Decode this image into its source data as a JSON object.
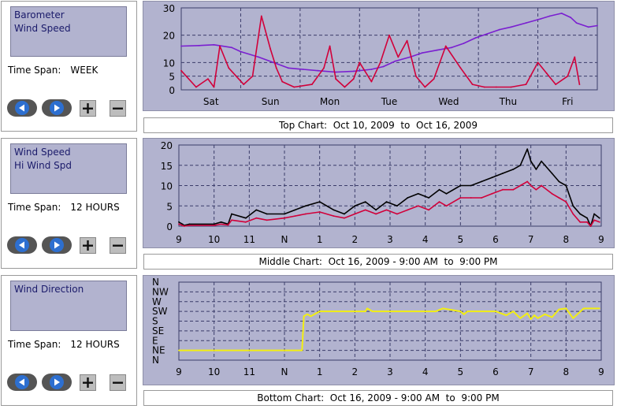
{
  "panels": [
    {
      "legend": [
        "Barometer",
        "Wind Speed"
      ],
      "time_span_label": "Time Span:",
      "time_span_value": "WEEK",
      "caption": "Top Chart:  Oct 10, 2009  to  Oct 16, 2009"
    },
    {
      "legend": [
        "Wind Speed",
        "Hi Wind Spd"
      ],
      "time_span_label": "Time Span:",
      "time_span_value": "12 HOURS",
      "caption": "Middle Chart:  Oct 16, 2009 - 9:00 AM  to  9:00 PM"
    },
    {
      "legend": [
        "Wind Direction"
      ],
      "time_span_label": "Time Span:",
      "time_span_value": "12 HOURS",
      "caption": "Bottom Chart:  Oct 16, 2009 - 9:00 AM  to  9:00 PM"
    }
  ],
  "colors": {
    "plot_bg": "#b2b3cf",
    "grid": "#3b3c6a",
    "barometer": "#7a1fd0",
    "wind_speed": "#d1003a",
    "hi_wind": "#000000",
    "wind_direction": "#f2ee12",
    "button": "#2d6fd0"
  },
  "chart_data": [
    {
      "type": "line",
      "ylim": [
        0,
        30
      ],
      "yticks": [
        "0",
        "5",
        "10",
        "20",
        "30"
      ],
      "x_labels": [
        "Sat",
        "Sun",
        "Mon",
        "Tue",
        "Wed",
        "Thu",
        "Fri"
      ],
      "series": [
        {
          "key": "barometer",
          "x": [
            0,
            0.3,
            0.55,
            0.85,
            1.0,
            1.3,
            1.55,
            1.8,
            2.05,
            2.3,
            2.6,
            2.9,
            3.2,
            3.4,
            3.6,
            3.85,
            4.05,
            4.3,
            4.55,
            4.75,
            4.95,
            5.15,
            5.35,
            5.55,
            5.8,
            6.05,
            6.2,
            6.4,
            6.55,
            6.65,
            6.85,
            7.0
          ],
          "values": [
            16,
            16.2,
            16.5,
            15.5,
            14,
            12,
            10,
            8,
            7.5,
            7,
            6.5,
            6.8,
            7.5,
            8.5,
            10.5,
            12,
            13.5,
            14.5,
            15.5,
            17,
            19,
            20.5,
            22,
            23,
            24.5,
            26,
            27,
            28,
            26.5,
            24.5,
            23,
            23.5
          ]
        },
        {
          "key": "wind_speed",
          "x": [
            0,
            0.25,
            0.45,
            0.55,
            0.65,
            0.8,
            1.05,
            1.2,
            1.35,
            1.5,
            1.6,
            1.7,
            1.9,
            2.2,
            2.4,
            2.5,
            2.6,
            2.75,
            2.9,
            3.0,
            3.2,
            3.35,
            3.5,
            3.65,
            3.8,
            3.95,
            4.1,
            4.25,
            4.45,
            4.7,
            4.9,
            5.1,
            5.3,
            5.55,
            5.8,
            6.0,
            6.15,
            6.3,
            6.5,
            6.62,
            6.7
          ],
          "values": [
            7,
            1,
            4,
            1,
            16,
            8,
            2,
            5,
            27,
            15,
            8,
            3,
            1,
            2,
            8,
            16,
            4,
            1,
            4,
            10,
            3,
            10,
            20,
            12,
            18,
            5,
            1,
            4,
            16,
            8,
            2,
            1,
            1,
            1,
            2,
            10,
            6,
            2,
            5,
            12,
            2
          ]
        }
      ]
    },
    {
      "type": "line",
      "ylim": [
        0,
        20
      ],
      "yticks": [
        "0",
        "5",
        "10",
        "15",
        "20"
      ],
      "x_labels": [
        "9",
        "10",
        "11",
        "N",
        "1",
        "2",
        "3",
        "4",
        "5",
        "6",
        "7",
        "8",
        "9"
      ],
      "series": [
        {
          "key": "hi_wind",
          "x": [
            0,
            0.1,
            0.15,
            0.3,
            1.0,
            1.2,
            1.4,
            1.5,
            1.9,
            2.2,
            2.5,
            3.0,
            3.3,
            3.6,
            4.0,
            4.4,
            4.7,
            5.0,
            5.3,
            5.6,
            5.9,
            6.2,
            6.5,
            6.8,
            7.1,
            7.4,
            7.6,
            8.0,
            8.3,
            8.6,
            8.9,
            9.2,
            9.5,
            9.7,
            9.9,
            10.0,
            10.15,
            10.3,
            10.6,
            10.8,
            11.0,
            11.2,
            11.4,
            11.6,
            11.7,
            11.8,
            11.95
          ],
          "values": [
            1,
            0.5,
            0.2,
            0.5,
            0.5,
            1,
            0.5,
            3,
            2,
            4,
            3,
            3,
            4,
            5,
            6,
            4,
            3,
            5,
            6,
            4,
            6,
            5,
            7,
            8,
            7,
            9,
            8,
            10,
            10,
            11,
            12,
            13,
            14,
            15,
            19,
            16,
            14,
            16,
            13,
            11,
            10,
            5,
            3,
            2,
            0,
            3,
            2
          ]
        },
        {
          "key": "wind_speed",
          "x": [
            0,
            0.1,
            0.15,
            0.3,
            1.0,
            1.2,
            1.4,
            1.5,
            1.9,
            2.2,
            2.5,
            3.0,
            3.3,
            3.6,
            4.0,
            4.4,
            4.7,
            5.0,
            5.3,
            5.6,
            5.9,
            6.2,
            6.5,
            6.8,
            7.1,
            7.4,
            7.6,
            8.0,
            8.3,
            8.6,
            8.9,
            9.2,
            9.5,
            9.7,
            9.9,
            10.0,
            10.15,
            10.3,
            10.6,
            10.8,
            11.0,
            11.2,
            11.4,
            11.6,
            11.7,
            11.8,
            11.95
          ],
          "values": [
            0.5,
            0.2,
            0,
            0.2,
            0.2,
            0.5,
            0.3,
            1.5,
            1,
            2,
            1.5,
            2,
            2.5,
            3,
            3.5,
            2.5,
            2,
            3,
            4,
            3,
            4,
            3,
            4,
            5,
            4,
            6,
            5,
            7,
            7,
            7,
            8,
            9,
            9,
            10,
            11,
            10,
            9,
            10,
            8,
            7,
            6,
            3,
            1,
            1,
            0,
            1.5,
            1
          ]
        }
      ]
    },
    {
      "type": "line",
      "y_categories": [
        "N",
        "NE",
        "E",
        "SE",
        "S",
        "SW",
        "W",
        "NW",
        "N"
      ],
      "x_labels": [
        "9",
        "10",
        "11",
        "N",
        "1",
        "2",
        "3",
        "4",
        "5",
        "6",
        "7",
        "8",
        "9"
      ],
      "series": [
        {
          "key": "wind_direction",
          "x": [
            0,
            0.15,
            0.5,
            0.7,
            1.3,
            3.0,
            3.3,
            3.5,
            3.55,
            3.65,
            3.75,
            3.85,
            4.0,
            4.5,
            5.3,
            5.35,
            5.5,
            6.2,
            7.3,
            7.5,
            8.0,
            8.1,
            8.2,
            8.5,
            9.0,
            9.3,
            9.5,
            9.7,
            9.9,
            10.0,
            10.1,
            10.2,
            10.4,
            10.6,
            10.8,
            11.0,
            11.2,
            11.5,
            11.95
          ],
          "values": [
            1,
            1,
            1,
            1,
            1,
            1,
            1,
            1,
            4.5,
            4.7,
            4.5,
            4.7,
            5.0,
            5.0,
            5.0,
            5.3,
            5.0,
            5.0,
            5.0,
            5.3,
            5.0,
            4.7,
            5.0,
            5.0,
            5.0,
            4.6,
            5.0,
            4.3,
            4.8,
            4.2,
            4.6,
            4.3,
            4.7,
            4.4,
            5.2,
            5.3,
            4.3,
            5.3,
            5.3
          ]
        }
      ]
    }
  ]
}
